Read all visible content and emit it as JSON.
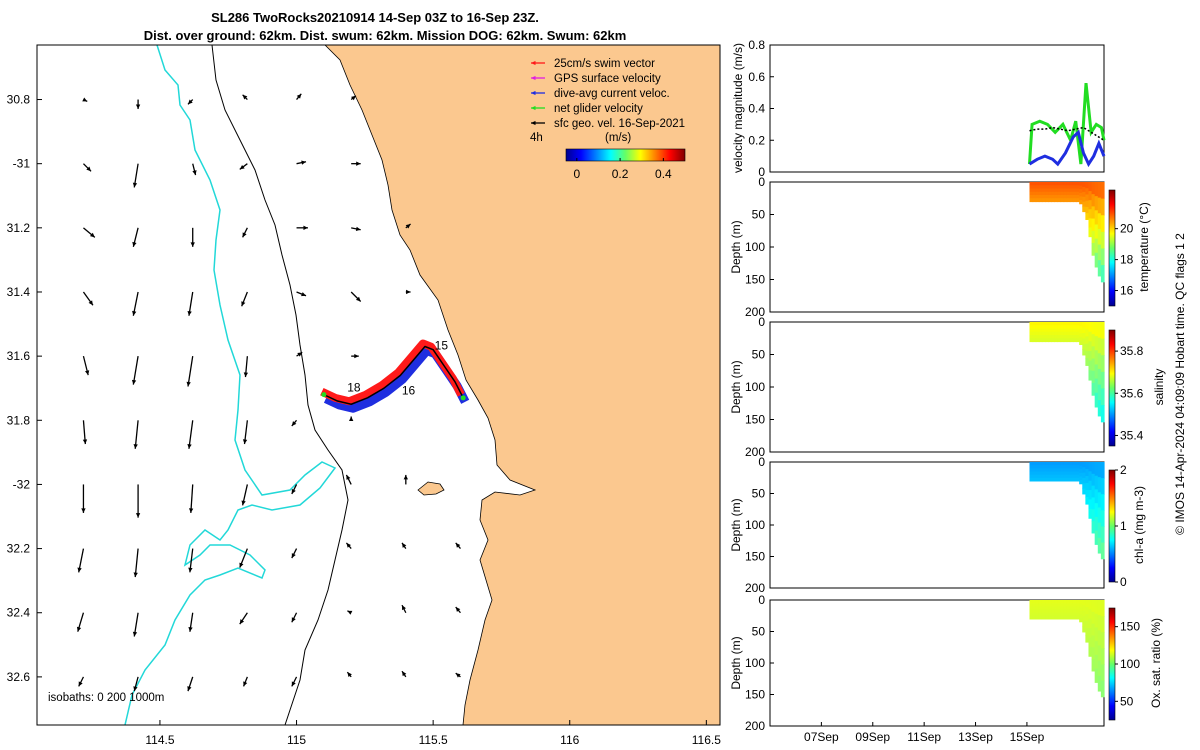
{
  "title": {
    "line1": "SL286 TwoRocks20210914 14-Sep 03Z to 16-Sep 23Z.",
    "line2": "Dist. over ground: 62km. Dist. swum: 62km. Mission DOG: 62km. Swum: 62km"
  },
  "credit": "© IMOS 14-Apr-2024 04:09:09 Hobart time. QC flags 1  2",
  "colors": {
    "land": "#fbc88f",
    "isobath_200": "#000000",
    "isobath_1000": "#22d8d8",
    "track_swim": "#ff1a1a",
    "track_current": "#1f2ee0",
    "net_velocity": "#22dd22",
    "geo_arrow": "#000000"
  },
  "chart_data": [
    {
      "id": "map",
      "type": "map",
      "xlim": [
        114.05,
        116.55
      ],
      "ylim": [
        -32.75,
        -30.63
      ],
      "xticks": [
        114.5,
        115,
        115.5,
        116,
        116.5
      ],
      "xtick_labels": [
        "114.5",
        "115",
        "115.5",
        "116",
        "116.5"
      ],
      "yticks": [
        -30.8,
        -31,
        -31.2,
        -31.4,
        -31.6,
        -31.8,
        -32,
        -32.2,
        -32.4,
        -32.6
      ],
      "ytick_labels": [
        "30.8",
        "-31",
        "31.2",
        "31.4",
        "31.6",
        "31.8",
        "-32",
        "32.2",
        "32.4",
        "32.6"
      ],
      "legend": {
        "entries": [
          {
            "label": "25cm/s swim vector",
            "color": "#ff1a1a"
          },
          {
            "label": "GPS surface velocity",
            "color": "#e020e0"
          },
          {
            "label": "dive-avg current veloc.",
            "color": "#1f2ee0"
          },
          {
            "label": "net glider velocity",
            "color": "#22dd22"
          },
          {
            "label": "sfc geo. vel. 16-Sep-2021",
            "color": "#000000"
          }
        ],
        "interval_label": "4h",
        "unit_label": "(m/s)",
        "colorbar_ticks": [
          0,
          0.2,
          0.4
        ],
        "colorbar_tick_labels": [
          "0",
          "0.2",
          "0.4"
        ],
        "colorbar_range": [
          -0.05,
          0.5
        ]
      },
      "isobaths_label": "isobaths: 0   200  1000m",
      "track": {
        "lon": [
          115.1,
          115.15,
          115.2,
          115.26,
          115.32,
          115.38,
          115.43,
          115.47,
          115.5,
          115.54,
          115.58,
          115.61
        ],
        "lat": [
          -31.72,
          -31.74,
          -31.75,
          -31.73,
          -31.7,
          -31.66,
          -31.61,
          -31.57,
          -31.58,
          -31.63,
          -31.68,
          -31.73
        ]
      },
      "day_labels": [
        {
          "label": "15",
          "lon": 115.53,
          "lat": -31.58
        },
        {
          "label": "16",
          "lon": 115.41,
          "lat": -31.72
        },
        {
          "label": "18",
          "lon": 115.21,
          "lat": -31.71
        }
      ],
      "geo_vectors": {
        "lons": [
          114.22,
          114.42,
          114.62,
          114.82,
          115.0,
          115.2,
          115.4,
          115.6
        ],
        "lats": [
          -30.8,
          -31.0,
          -31.2,
          -31.4,
          -31.6,
          -31.8,
          -32.0,
          -32.2,
          -32.4,
          -32.6
        ],
        "u": [
          [
            0.04,
            0.0,
            -0.05,
            -0.05,
            0.05,
            0.05,
            0.0,
            0.0
          ],
          [
            0.08,
            -0.04,
            0.03,
            -0.08,
            0.1,
            0.1,
            0.0,
            0.0
          ],
          [
            0.12,
            -0.05,
            0.0,
            -0.05,
            0.12,
            0.1,
            0.05,
            0.0
          ],
          [
            0.1,
            -0.05,
            -0.04,
            -0.06,
            0.1,
            0.1,
            0.05,
            0.0
          ],
          [
            0.05,
            -0.05,
            -0.05,
            -0.02,
            0.06,
            0.08,
            0.0,
            0.0
          ],
          [
            0.02,
            -0.03,
            -0.04,
            -0.03,
            -0.05,
            0.0,
            0.0,
            0.0
          ],
          [
            0.0,
            0.0,
            -0.02,
            -0.05,
            -0.05,
            -0.05,
            0.0,
            0.0
          ],
          [
            -0.05,
            -0.03,
            -0.03,
            -0.08,
            -0.05,
            -0.05,
            -0.04,
            -0.05
          ],
          [
            -0.06,
            -0.04,
            -0.03,
            -0.08,
            -0.05,
            -0.04,
            -0.04,
            -0.05
          ],
          [
            -0.05,
            -0.04,
            -0.05,
            -0.04,
            -0.05,
            -0.04,
            -0.04,
            -0.05
          ]
        ],
        "v": [
          [
            -0.02,
            -0.1,
            -0.05,
            0.05,
            0.06,
            0.04,
            0.0,
            0.0
          ],
          [
            -0.08,
            -0.25,
            -0.12,
            -0.06,
            0.02,
            0.0,
            0.0,
            0.0
          ],
          [
            -0.1,
            -0.2,
            -0.2,
            -0.1,
            0.0,
            -0.02,
            0.04,
            0.0
          ],
          [
            -0.14,
            -0.25,
            -0.25,
            -0.15,
            -0.04,
            -0.1,
            0.0,
            0.0
          ],
          [
            -0.2,
            -0.3,
            -0.32,
            -0.22,
            0.04,
            0.0,
            0.0,
            0.0
          ],
          [
            -0.25,
            -0.3,
            -0.3,
            -0.25,
            -0.06,
            0.04,
            0.0,
            0.0
          ],
          [
            -0.3,
            -0.35,
            -0.3,
            -0.22,
            -0.1,
            0.1,
            0.1,
            0.0
          ],
          [
            -0.25,
            -0.3,
            -0.25,
            -0.2,
            -0.1,
            0.06,
            0.06,
            0.06
          ],
          [
            -0.2,
            -0.25,
            -0.2,
            -0.12,
            -0.1,
            0.02,
            0.08,
            0.06
          ],
          [
            -0.1,
            -0.15,
            -0.15,
            -0.1,
            -0.1,
            0.05,
            0.06,
            0.04
          ]
        ]
      }
    },
    {
      "id": "velocity",
      "type": "line",
      "ylabel": "velocity magnitude (m/s)",
      "ylim": [
        0,
        0.8
      ],
      "yticks": [
        0,
        0.2,
        0.4,
        0.6,
        0.8
      ],
      "ytick_labels": [
        "0",
        "0.2",
        "0.4",
        "0.6",
        "0.8"
      ],
      "xlim": [
        5,
        18
      ],
      "series": [
        {
          "name": "net glider velocity",
          "color": "#22dd22",
          "x": [
            15.1,
            15.2,
            15.5,
            15.8,
            16.1,
            16.4,
            16.7,
            16.9,
            17.1,
            17.3,
            17.5,
            17.7,
            17.9,
            18.0
          ],
          "y": [
            0.05,
            0.3,
            0.32,
            0.3,
            0.25,
            0.3,
            0.2,
            0.32,
            0.05,
            0.56,
            0.25,
            0.3,
            0.28,
            0.2
          ]
        },
        {
          "name": "dive-avg current veloc.",
          "color": "#1f2ee0",
          "x": [
            15.1,
            15.4,
            15.7,
            16.0,
            16.2,
            16.5,
            16.8,
            17.0,
            17.2,
            17.4,
            17.6,
            17.8,
            18.0
          ],
          "y": [
            0.05,
            0.08,
            0.1,
            0.08,
            0.05,
            0.12,
            0.22,
            0.25,
            0.12,
            0.05,
            0.1,
            0.18,
            0.1
          ]
        },
        {
          "name": "sfc geo. vel.",
          "color": "#000000",
          "x": [
            15.1,
            15.4,
            15.7,
            16.0,
            16.3,
            16.6,
            16.9,
            17.2,
            17.5,
            17.8,
            18.0
          ],
          "y": [
            0.26,
            0.27,
            0.27,
            0.28,
            0.27,
            0.26,
            0.27,
            0.28,
            0.25,
            0.22,
            0.2
          ]
        }
      ]
    },
    {
      "id": "temperature",
      "type": "heatmap",
      "ylabel": "Depth (m)",
      "yticks": [
        0,
        50,
        100,
        150,
        200
      ],
      "ytick_labels": [
        "0",
        "50",
        "100",
        "150",
        "200"
      ],
      "ylim": [
        200,
        0
      ],
      "colorbar_label": "temperature (°C)",
      "colorbar_range": [
        15,
        22.5
      ],
      "colorbar_ticks": [
        16,
        18,
        20
      ],
      "colorbar_tick_labels": [
        "16",
        "18",
        "20"
      ],
      "xlim": [
        5,
        18
      ],
      "profile": {
        "x": [
          15.1,
          16.0,
          16.5,
          17.0,
          17.3,
          17.5,
          17.7,
          17.9,
          18.0
        ],
        "max_depth": [
          30,
          30,
          30,
          30,
          60,
          110,
          140,
          155,
          160
        ]
      },
      "surface_value": 21.0,
      "deep_value": 18.0
    },
    {
      "id": "salinity",
      "type": "heatmap",
      "ylabel": "Depth (m)",
      "yticks": [
        0,
        50,
        100,
        150,
        200
      ],
      "ytick_labels": [
        "0",
        "50",
        "100",
        "150",
        "200"
      ],
      "ylim": [
        200,
        0
      ],
      "colorbar_label": "salinity",
      "colorbar_range": [
        35.35,
        35.9
      ],
      "colorbar_ticks": [
        35.4,
        35.6,
        35.8
      ],
      "colorbar_tick_labels": [
        "35.4",
        "35.6",
        "35.8"
      ],
      "xlim": [
        5,
        18
      ],
      "profile": {
        "x": [
          15.1,
          16.0,
          16.5,
          17.0,
          17.3,
          17.5,
          17.7,
          17.9,
          18.0
        ],
        "max_depth": [
          30,
          30,
          30,
          30,
          70,
          110,
          140,
          155,
          160
        ]
      },
      "surface_value": 35.7,
      "deep_value": 35.55
    },
    {
      "id": "chla",
      "type": "heatmap",
      "ylabel": "Depth (m)",
      "yticks": [
        0,
        50,
        100,
        150,
        200
      ],
      "ytick_labels": [
        "0",
        "50",
        "100",
        "150",
        "200"
      ],
      "ylim": [
        200,
        0
      ],
      "colorbar_label": "chl-a (mg m-3)",
      "colorbar_range": [
        0,
        2
      ],
      "colorbar_ticks": [
        0,
        1,
        2
      ],
      "colorbar_tick_labels": [
        "0",
        "1",
        "2"
      ],
      "xlim": [
        5,
        18
      ],
      "profile": {
        "x": [
          15.1,
          16.0,
          16.5,
          17.0,
          17.3,
          17.5,
          17.7,
          17.9,
          18.0
        ],
        "max_depth": [
          30,
          30,
          30,
          30,
          70,
          110,
          140,
          155,
          160
        ]
      },
      "surface_value": 0.55,
      "deep_value": 1.0
    },
    {
      "id": "oxygen",
      "type": "heatmap",
      "ylabel": "Depth (m)",
      "yticks": [
        0,
        50,
        100,
        150,
        200
      ],
      "ytick_labels": [
        "0",
        "50",
        "100",
        "150",
        "200"
      ],
      "ylim": [
        200,
        0
      ],
      "colorbar_label": "Ox. sat. ratio (%)",
      "colorbar_range": [
        25,
        175
      ],
      "colorbar_ticks": [
        50,
        100,
        150
      ],
      "colorbar_tick_labels": [
        "50",
        "100",
        "150"
      ],
      "xlim": [
        5,
        18
      ],
      "xticks": [
        7,
        9,
        11,
        13,
        15
      ],
      "xtick_labels": [
        "07Sep",
        "09Sep",
        "11Sep",
        "13Sep",
        "15Sep"
      ],
      "profile": {
        "x": [
          15.1,
          16.0,
          16.5,
          17.0,
          17.3,
          17.5,
          17.7,
          17.9,
          18.0
        ],
        "max_depth": [
          30,
          30,
          30,
          30,
          70,
          110,
          140,
          155,
          160
        ]
      },
      "surface_value": 115,
      "deep_value": 100
    }
  ]
}
